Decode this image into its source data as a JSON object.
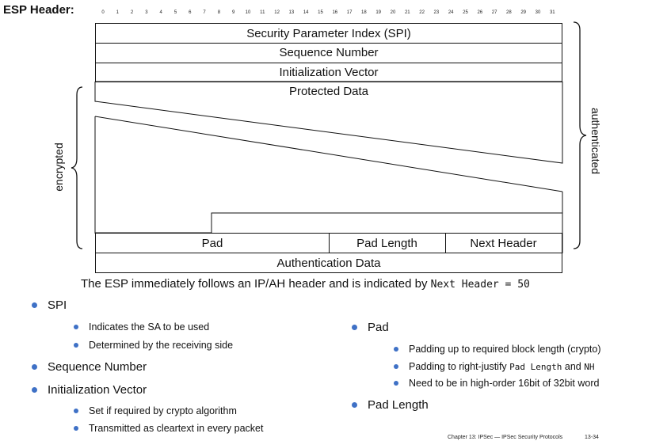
{
  "title": "ESP Header:",
  "bit_numbers": [
    "0",
    "1",
    "2",
    "3",
    "4",
    "5",
    "6",
    "7",
    "8",
    "9",
    "10",
    "11",
    "12",
    "13",
    "14",
    "15",
    "16",
    "17",
    "18",
    "19",
    "20",
    "21",
    "22",
    "23",
    "24",
    "25",
    "26",
    "27",
    "28",
    "29",
    "30",
    "31"
  ],
  "fields": {
    "spi": "Security Parameter Index (SPI)",
    "sequence": "Sequence Number",
    "iv": "Initialization Vector",
    "protected": "Protected Data",
    "pad": "Pad",
    "pad_length": "Pad Length",
    "next_header": "Next Header",
    "auth": "Authentication Data"
  },
  "braces": {
    "encrypted": "encrypted",
    "authenticated": "authenticated"
  },
  "caption": {
    "text": "The ESP immediately follows an IP/AH header and is indicated by",
    "code": "Next Header = 50"
  },
  "left_list": {
    "spi": {
      "label": "SPI",
      "items": [
        "Indicates the SA to be used",
        "Determined by the receiving side"
      ]
    },
    "sequence": {
      "label": "Sequence Number"
    },
    "iv": {
      "label": "Initialization Vector",
      "items": [
        "Set if required by crypto algorithm",
        "Transmitted as cleartext in every packet"
      ]
    }
  },
  "right_list": {
    "pad": {
      "label": "Pad",
      "item1": "Padding up to required block length (crypto)",
      "item2": {
        "pre": "Padding to right-justify",
        "code1": "Pad Length",
        "mid": "and",
        "code2": "NH"
      },
      "item3": "Need to be in high-order 16bit of 32bit word"
    },
    "pad_length": {
      "label": "Pad Length"
    }
  },
  "footer": {
    "chapter": "Chapter 13: IPSec — IPSec Security Protocols",
    "page": "13-34"
  },
  "colors": {
    "bullet": "#3f71c6",
    "lines": "#111111"
  }
}
